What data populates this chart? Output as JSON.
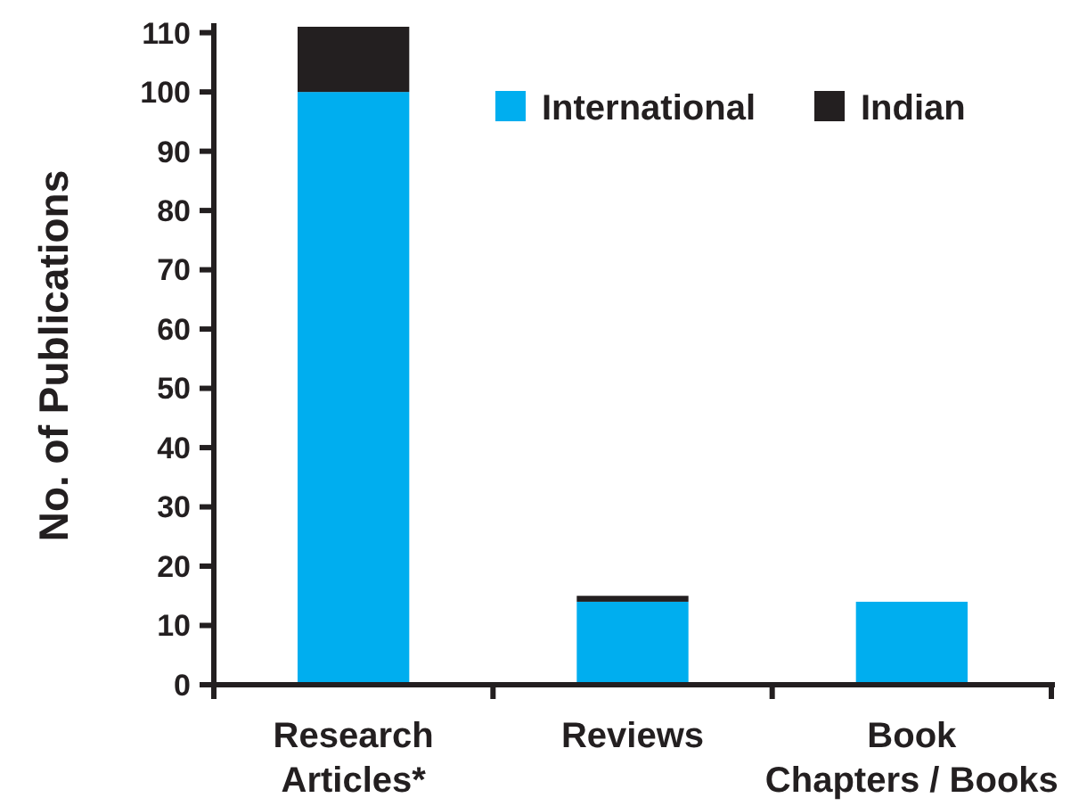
{
  "chart_data": {
    "type": "bar",
    "stacked": true,
    "categories": [
      "Research Articles*",
      "Reviews",
      "Book Chapters / Books"
    ],
    "series": [
      {
        "name": "International",
        "color": "#00aeef",
        "values": [
          100,
          14,
          14
        ]
      },
      {
        "name": "Indian",
        "color": "#231f20",
        "values": [
          11,
          1,
          0
        ]
      }
    ],
    "ylabel": "No. of Publications",
    "ylim": [
      0,
      111
    ],
    "yticks": [
      0,
      10,
      20,
      30,
      40,
      50,
      60,
      70,
      80,
      90,
      100,
      110
    ],
    "legend": "top right",
    "grid": false
  }
}
